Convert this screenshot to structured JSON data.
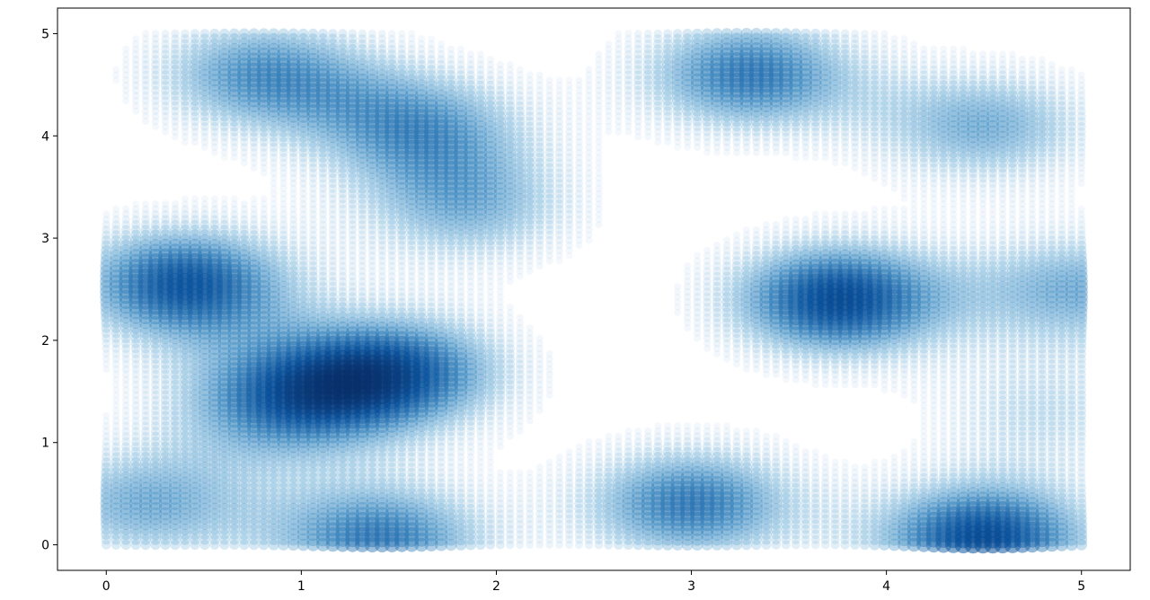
{
  "chart_data": {
    "type": "scatter",
    "title": "",
    "xlabel": "",
    "ylabel": "",
    "xlim": [
      -0.25,
      5.25
    ],
    "ylim": [
      -0.25,
      5.25
    ],
    "x_ticks": [
      "0",
      "1",
      "2",
      "3",
      "4",
      "5"
    ],
    "y_ticks": [
      "0",
      "1",
      "2",
      "3",
      "4",
      "5"
    ],
    "grid": false,
    "legend": "none",
    "colormap": "Blues",
    "point_color": "#1f77b4",
    "grid_range": [
      0,
      5
    ],
    "points_per_axis": 100,
    "marker_size_scaled_by_density": true,
    "density_peaks": [
      {
        "x": 0.4,
        "y": 2.55,
        "strength": 0.95
      },
      {
        "x": 0.8,
        "y": 4.6,
        "strength": 0.7
      },
      {
        "x": 1.6,
        "y": 4.1,
        "strength": 0.65
      },
      {
        "x": 1.85,
        "y": 3.3,
        "strength": 0.55
      },
      {
        "x": 1.5,
        "y": 1.7,
        "strength": 0.85
      },
      {
        "x": 0.9,
        "y": 1.4,
        "strength": 0.75
      },
      {
        "x": 0.2,
        "y": 0.4,
        "strength": 0.6
      },
      {
        "x": 1.4,
        "y": 0.05,
        "strength": 0.8
      },
      {
        "x": 3.0,
        "y": 0.4,
        "strength": 0.8
      },
      {
        "x": 4.5,
        "y": 0.05,
        "strength": 1.0
      },
      {
        "x": 3.75,
        "y": 2.4,
        "strength": 1.0
      },
      {
        "x": 3.3,
        "y": 4.6,
        "strength": 0.8
      },
      {
        "x": 4.5,
        "y": 4.1,
        "strength": 0.6
      },
      {
        "x": 5.0,
        "y": 2.5,
        "strength": 0.6
      },
      {
        "x": 4.8,
        "y": 1.3,
        "strength": 0.35
      }
    ]
  }
}
